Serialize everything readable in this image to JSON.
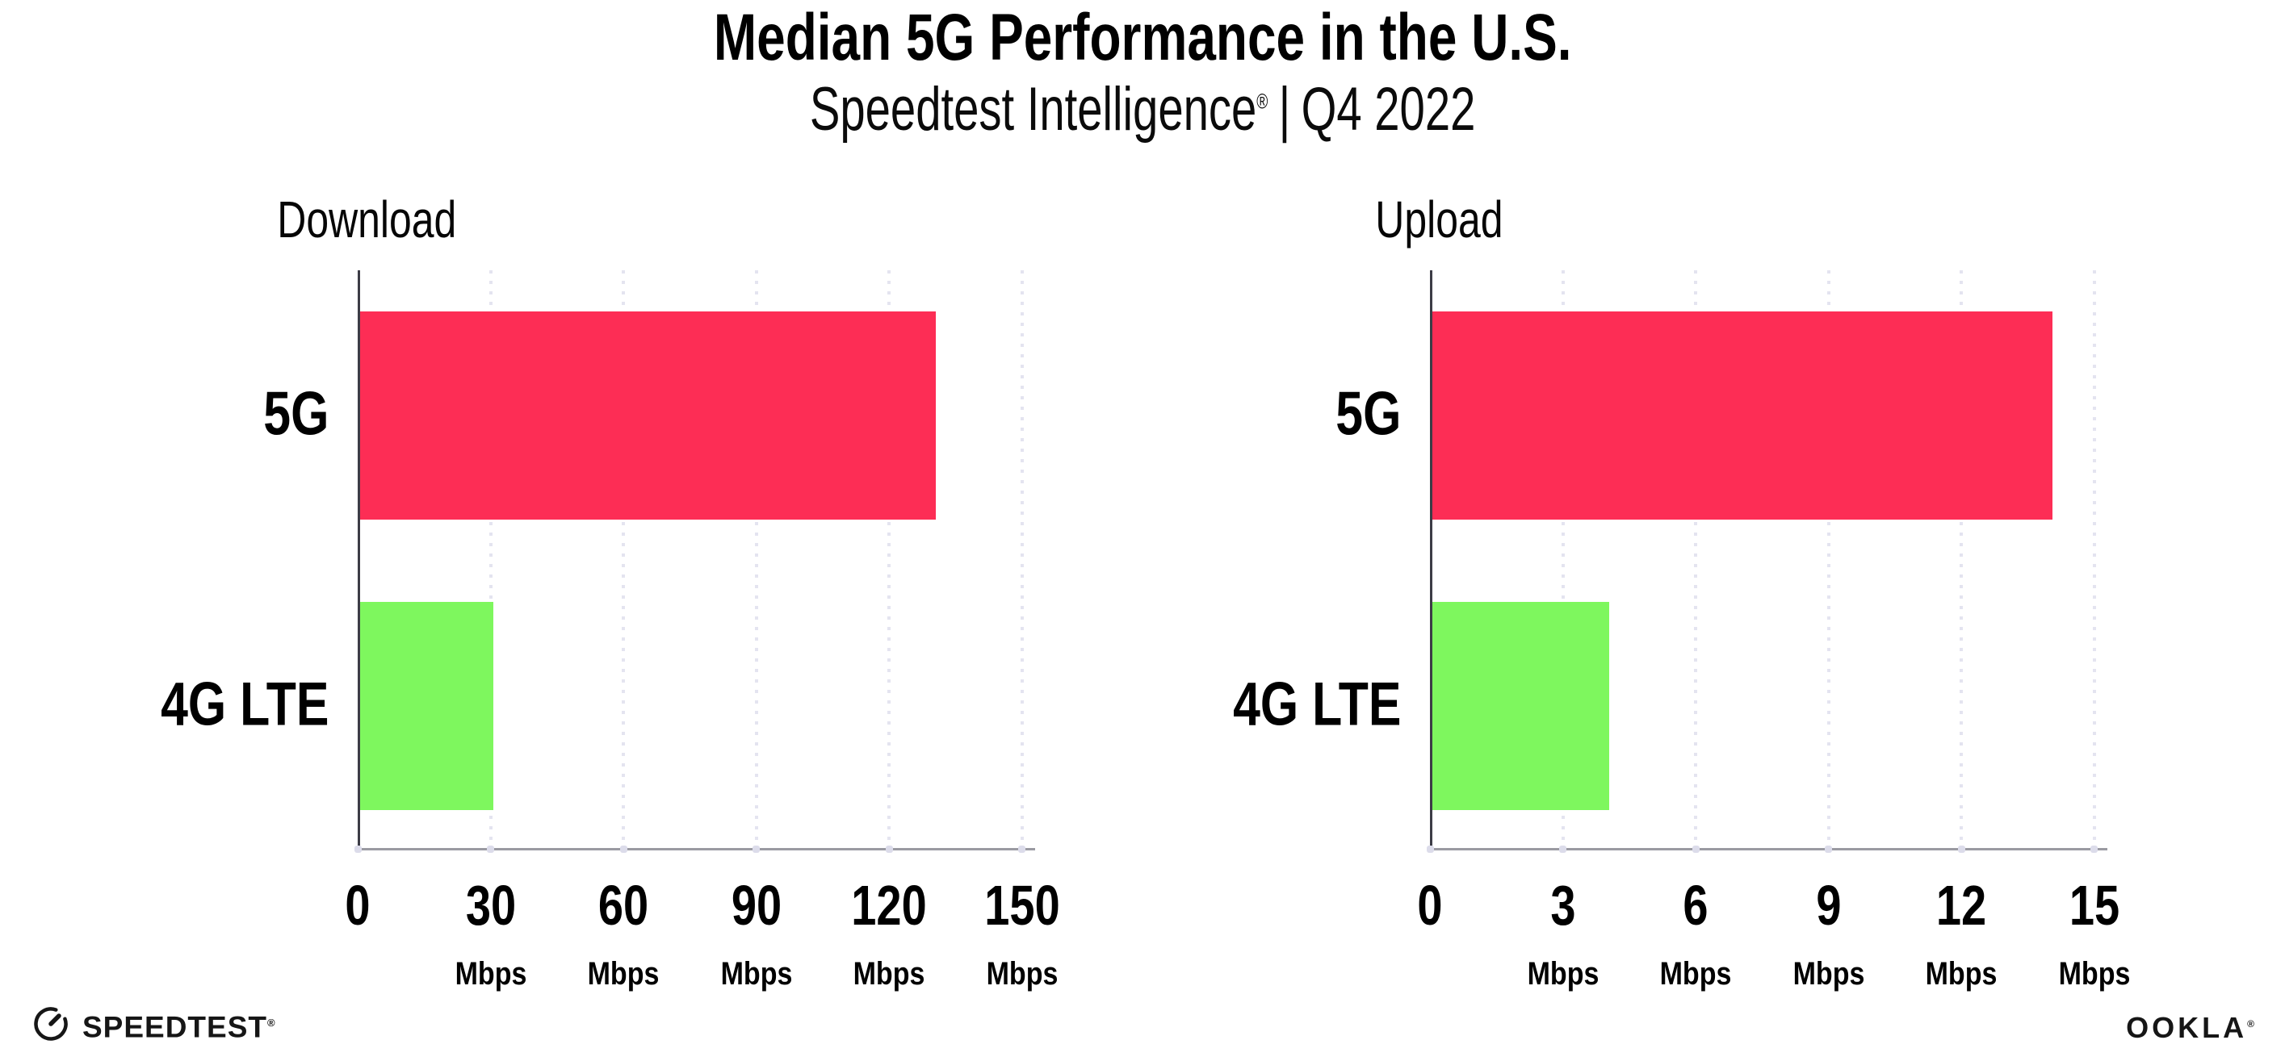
{
  "header": {
    "title": "Median 5G Performance in the U.S.",
    "subtitle": {
      "brand": "Speedtest Intelligence",
      "registered_mark": "®",
      "separator": "|",
      "period": "Q4 2022"
    }
  },
  "chart_data": [
    {
      "type": "bar",
      "orientation": "horizontal",
      "title": "Download",
      "categories": [
        "5G",
        "4G LTE"
      ],
      "values": [
        130,
        30
      ],
      "unit": "Mbps",
      "xlabel": "Mbps",
      "xlim": [
        0,
        150
      ],
      "xticks": [
        0,
        30,
        60,
        90,
        120,
        150
      ],
      "bar_colors": [
        "#FD2D55",
        "#7EF75E"
      ],
      "grid": "dotted-vertical",
      "legend": "none"
    },
    {
      "type": "bar",
      "orientation": "horizontal",
      "title": "Upload",
      "categories": [
        "5G",
        "4G LTE"
      ],
      "values": [
        14,
        4
      ],
      "unit": "Mbps",
      "xlabel": "Mbps",
      "xlim": [
        0,
        15
      ],
      "xticks": [
        0,
        3,
        6,
        9,
        12,
        15
      ],
      "bar_colors": [
        "#FD2D55",
        "#7EF75E"
      ],
      "grid": "dotted-vertical",
      "legend": "none"
    }
  ],
  "footer": {
    "speedtest_logo": {
      "icon": "speedtest-gauge-icon",
      "label": "SPEEDTEST",
      "registered_mark": "®"
    },
    "ookla_logo": {
      "label": "OOKLA",
      "registered_mark": "®"
    }
  },
  "colors": {
    "bar_5g": "#FD2D55",
    "bar_4g_lte": "#7EF75E",
    "gridline": "#E4E4F0",
    "axis_y": "#3C3C46",
    "axis_x": "#9A9AA2",
    "tick_dot": "#DCDCEA",
    "text": "#000000",
    "background": "#FFFFFF"
  }
}
